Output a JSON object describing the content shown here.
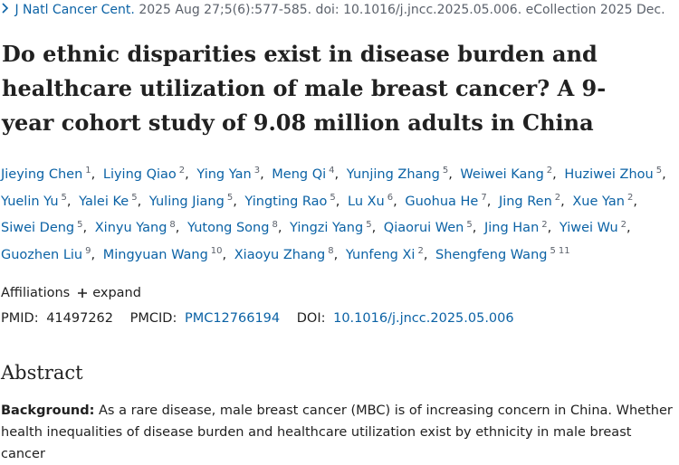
{
  "citation": {
    "journal": "J Natl Cancer Cent.",
    "details": "2025 Aug 27;5(6):577-585. doi: 10.1016/j.jncc.2025.05.006. eCollection 2025 Dec."
  },
  "title": "Do ethnic disparities exist in disease burden and healthcare utilization of male breast cancer? A 9-year cohort study of 9.08 million adults in China",
  "authors": [
    {
      "name": "Jieying Chen",
      "affils": [
        "1"
      ]
    },
    {
      "name": "Liying Qiao",
      "affils": [
        "2"
      ]
    },
    {
      "name": "Ying Yan",
      "affils": [
        "3"
      ]
    },
    {
      "name": "Meng Qi",
      "affils": [
        "4"
      ]
    },
    {
      "name": "Yunjing Zhang",
      "affils": [
        "5"
      ]
    },
    {
      "name": "Weiwei Kang",
      "affils": [
        "2"
      ]
    },
    {
      "name": "Huziwei Zhou",
      "affils": [
        "5"
      ]
    },
    {
      "name": "Yuelin Yu",
      "affils": [
        "5"
      ]
    },
    {
      "name": "Yalei Ke",
      "affils": [
        "5"
      ]
    },
    {
      "name": "Yuling Jiang",
      "affils": [
        "5"
      ]
    },
    {
      "name": "Yingting Rao",
      "affils": [
        "5"
      ]
    },
    {
      "name": "Lu Xu",
      "affils": [
        "6"
      ]
    },
    {
      "name": "Guohua He",
      "affils": [
        "7"
      ]
    },
    {
      "name": "Jing Ren",
      "affils": [
        "2"
      ]
    },
    {
      "name": "Xue Yan",
      "affils": [
        "2"
      ]
    },
    {
      "name": "Siwei Deng",
      "affils": [
        "5"
      ]
    },
    {
      "name": "Xinyu Yang",
      "affils": [
        "8"
      ]
    },
    {
      "name": "Yutong Song",
      "affils": [
        "8"
      ]
    },
    {
      "name": "Yingzi Yang",
      "affils": [
        "5"
      ]
    },
    {
      "name": "Qiaorui Wen",
      "affils": [
        "5"
      ]
    },
    {
      "name": "Jing Han",
      "affils": [
        "2"
      ]
    },
    {
      "name": "Yiwei Wu",
      "affils": [
        "2"
      ]
    },
    {
      "name": "Guozhen Liu",
      "affils": [
        "9"
      ]
    },
    {
      "name": "Mingyuan Wang",
      "affils": [
        "10"
      ]
    },
    {
      "name": "Xiaoyu Zhang",
      "affils": [
        "8"
      ]
    },
    {
      "name": "Yunfeng Xi",
      "affils": [
        "2"
      ]
    },
    {
      "name": "Shengfeng Wang",
      "affils": [
        "5",
        "11"
      ]
    }
  ],
  "affiliations": {
    "label": "Affiliations",
    "expand": "expand"
  },
  "ids": {
    "pmid_label": "PMID:",
    "pmid": "41497262",
    "pmcid_label": "PMCID:",
    "pmcid": "PMC12766194",
    "doi_label": "DOI:",
    "doi": "10.1016/j.jncc.2025.05.006"
  },
  "abstract": {
    "heading": "Abstract",
    "background_label": "Background:",
    "background_text": "As a rare disease, male breast cancer (MBC) is of increasing concern in China. Whether health inequalities of disease burden and healthcare utilization exist by ethnicity in male breast cancer"
  }
}
